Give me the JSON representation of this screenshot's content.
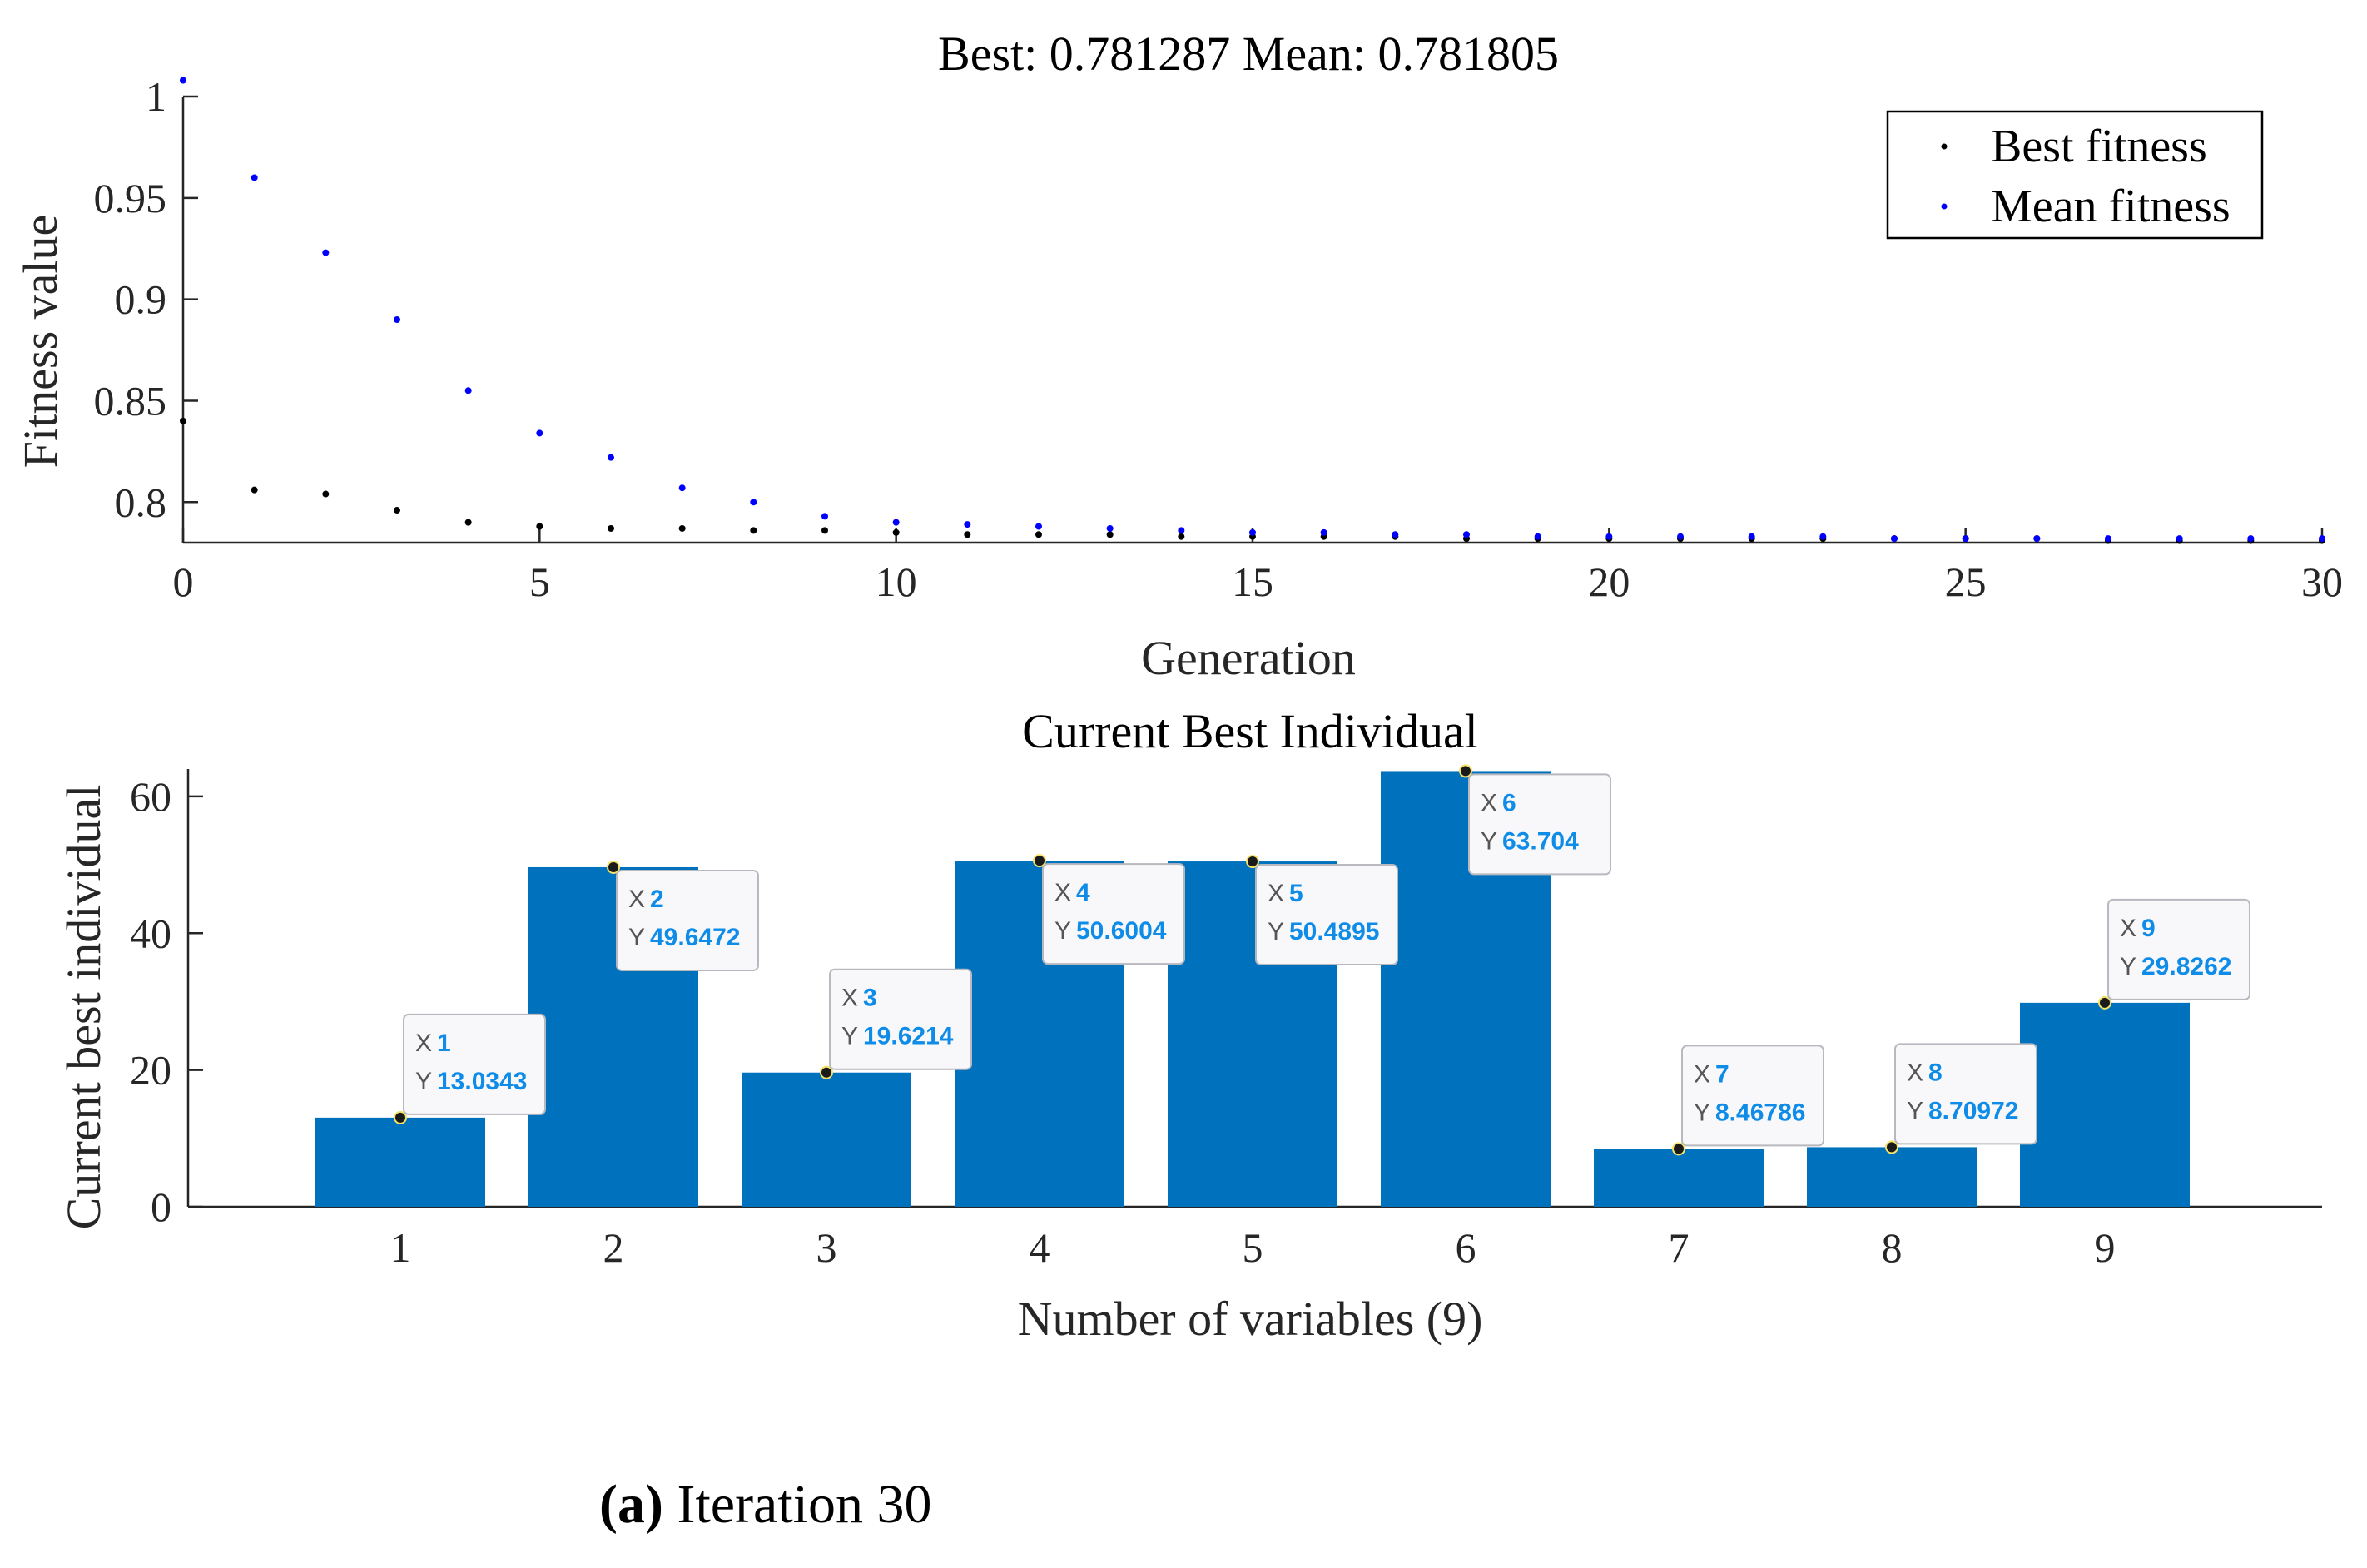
{
  "chart_data": [
    {
      "type": "scatter",
      "title": "Best: 0.781287 Mean: 0.781805",
      "xlabel": "Generation",
      "ylabel": "Fitness value",
      "xlim": [
        0,
        30
      ],
      "ylim": [
        0.78,
        1
      ],
      "xticks": [
        "0",
        "5",
        "10",
        "15",
        "20",
        "25",
        "30"
      ],
      "yticks": [
        "0.8",
        "0.85",
        "0.9",
        "0.95",
        "1"
      ],
      "legend_position": "top-right",
      "series": [
        {
          "name": "Best fitness",
          "color": "#000000",
          "x": [
            0,
            1,
            2,
            3,
            4,
            5,
            6,
            7,
            8,
            9,
            10,
            11,
            12,
            13,
            14,
            15,
            16,
            17,
            18,
            19,
            20,
            21,
            22,
            23,
            24,
            25,
            26,
            27,
            28,
            29,
            30
          ],
          "values": [
            0.84,
            0.806,
            0.804,
            0.796,
            0.79,
            0.788,
            0.787,
            0.787,
            0.786,
            0.786,
            0.785,
            0.784,
            0.784,
            0.784,
            0.783,
            0.783,
            0.783,
            0.783,
            0.782,
            0.782,
            0.782,
            0.782,
            0.782,
            0.782,
            0.782,
            0.782,
            0.782,
            0.781,
            0.781,
            0.781,
            0.781
          ]
        },
        {
          "name": "Mean fitness",
          "color": "#0000ff",
          "x": [
            0,
            1,
            2,
            3,
            4,
            5,
            6,
            7,
            8,
            9,
            10,
            11,
            12,
            13,
            14,
            15,
            16,
            17,
            18,
            19,
            20,
            21,
            22,
            23,
            24,
            25,
            26,
            27,
            28,
            29,
            30
          ],
          "values": [
            1.008,
            0.96,
            0.923,
            0.89,
            0.855,
            0.834,
            0.822,
            0.807,
            0.8,
            0.793,
            0.79,
            0.789,
            0.788,
            0.787,
            0.786,
            0.785,
            0.785,
            0.784,
            0.784,
            0.783,
            0.783,
            0.783,
            0.783,
            0.783,
            0.782,
            0.782,
            0.782,
            0.782,
            0.782,
            0.782,
            0.782
          ]
        }
      ]
    },
    {
      "type": "bar",
      "title": "Current Best Individual",
      "xlabel": "Number of variables (9)",
      "ylabel": "Current best individual",
      "ylim": [
        0,
        64
      ],
      "yticks": [
        "0",
        "20",
        "40",
        "60"
      ],
      "categories": [
        "1",
        "2",
        "3",
        "4",
        "5",
        "6",
        "7",
        "8",
        "9"
      ],
      "values": [
        13.0343,
        49.6472,
        19.6214,
        50.6004,
        50.4895,
        63.704,
        8.46786,
        8.70972,
        29.8262
      ],
      "value_labels": [
        "13.0343",
        "49.6472",
        "19.6214",
        "50.6004",
        "50.4895",
        "63.704",
        "8.46786",
        "8.70972",
        "29.8262"
      ],
      "bar_color": "#0072bd",
      "tooltip_x_key": "X",
      "tooltip_y_key": "Y"
    }
  ],
  "caption": {
    "label": "(a)",
    "text": " Iteration 30"
  }
}
